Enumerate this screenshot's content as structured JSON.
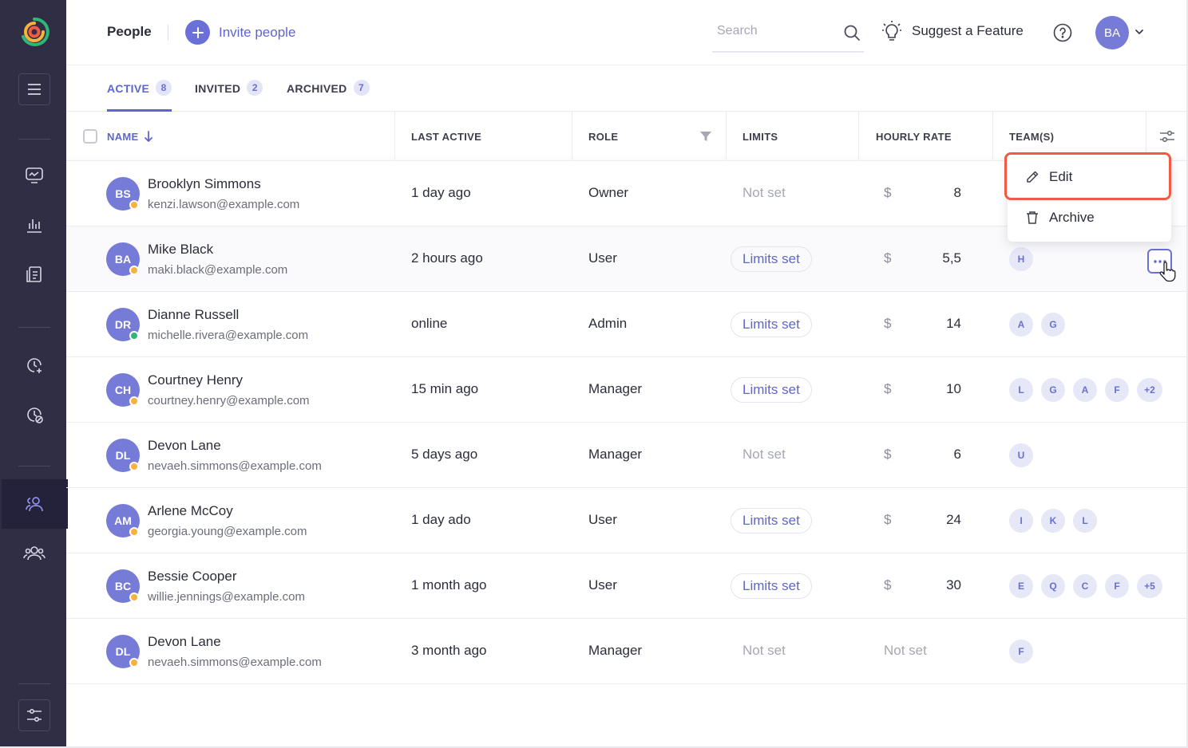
{
  "sidebar": {
    "icons": [
      "menu-icon",
      "monitor-icon",
      "bar-chart-icon",
      "report-icon",
      "add-time-icon",
      "time-off-icon",
      "people-icon",
      "teams-icon",
      "settings-sliders-icon"
    ]
  },
  "header": {
    "title": "People",
    "invite_label": "Invite people",
    "search_placeholder": "Search",
    "suggest_label": "Suggest a Feature",
    "user_initials": "BA"
  },
  "tabs": [
    {
      "label": "ACTIVE",
      "count": "8"
    },
    {
      "label": "INVITED",
      "count": "2"
    },
    {
      "label": "ARCHIVED",
      "count": "7"
    }
  ],
  "columns": {
    "name": "NAME",
    "last_active": "LAST ACTIVE",
    "role": "ROLE",
    "limits": "LIMITS",
    "hourly_rate": "HOURLY RATE",
    "teams": "TEAM(S)"
  },
  "rows": [
    {
      "initials": "BS",
      "name": "Brooklyn Simmons",
      "email": "kenzi.lawson@example.com",
      "last_active": "1 day ago",
      "role": "Owner",
      "limits": "Not set",
      "currency": "$",
      "rate": "8",
      "teams": [],
      "status": "away"
    },
    {
      "initials": "BA",
      "name": "Mike Black",
      "email": "maki.black@example.com",
      "last_active": "2 hours ago",
      "role": "User",
      "limits": "Limits set",
      "currency": "$",
      "rate": "5,5",
      "teams": [
        "H"
      ],
      "status": "away"
    },
    {
      "initials": "DR",
      "name": "Dianne Russell",
      "email": "michelle.rivera@example.com",
      "last_active": "online",
      "role": "Admin",
      "limits": "Limits set",
      "currency": "$",
      "rate": "14",
      "teams": [
        "A",
        "G"
      ],
      "status": "online"
    },
    {
      "initials": "CH",
      "name": "Courtney Henry",
      "email": "courtney.henry@example.com",
      "last_active": "15 min ago",
      "role": "Manager",
      "limits": "Limits set",
      "currency": "$",
      "rate": "10",
      "teams": [
        "L",
        "G",
        "A",
        "F",
        "+2"
      ],
      "status": "away"
    },
    {
      "initials": "DL",
      "name": "Devon Lane",
      "email": "nevaeh.simmons@example.com",
      "last_active": "5 days ago",
      "role": "Manager",
      "limits": "Not set",
      "currency": "$",
      "rate": "6",
      "teams": [
        "U"
      ],
      "status": "away"
    },
    {
      "initials": "AM",
      "name": "Arlene McCoy",
      "email": "georgia.young@example.com",
      "last_active": "1 day ado",
      "role": "User",
      "limits": "Limits set",
      "currency": "$",
      "rate": "24",
      "teams": [
        "I",
        "K",
        "L"
      ],
      "status": "away"
    },
    {
      "initials": "BC",
      "name": "Bessie Cooper",
      "email": "willie.jennings@example.com",
      "last_active": "1 month ago",
      "role": "User",
      "limits": "Limits set",
      "currency": "$",
      "rate": "30",
      "teams": [
        "E",
        "Q",
        "C",
        "F",
        "+5"
      ],
      "status": "away"
    },
    {
      "initials": "DL",
      "name": "Devon Lane",
      "email": "nevaeh.simmons@example.com",
      "last_active": "3 month ago",
      "role": "Manager",
      "limits": "Not set",
      "currency": "",
      "rate": "Not set",
      "teams": [
        "F"
      ],
      "status": "away"
    }
  ],
  "menu": {
    "edit": "Edit",
    "archive": "Archive"
  },
  "colors": {
    "sidebar": "#2f2e45",
    "accent": "#5f65cf",
    "avatar": "#757bd6",
    "highlight": "#f05b43",
    "online": "#2fb67a",
    "away": "#f7b23b"
  }
}
